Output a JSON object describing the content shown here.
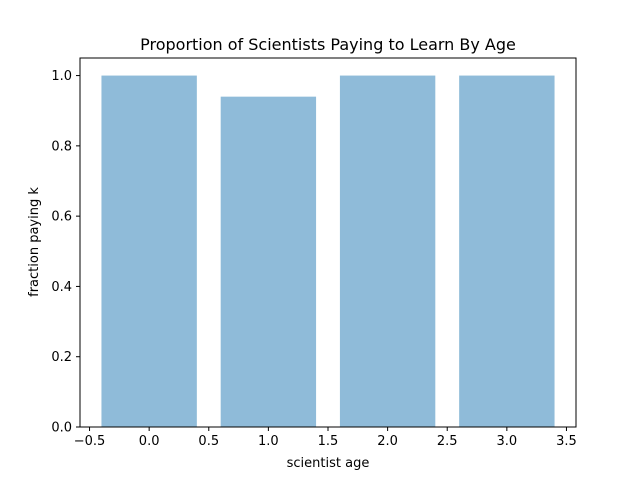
{
  "chart_data": {
    "type": "bar",
    "title": "Proportion of Scientists Paying to Learn By Age",
    "xlabel": "scientist age",
    "ylabel": "fraction paying k",
    "bars": [
      {
        "x": 0,
        "value": 1.0
      },
      {
        "x": 1,
        "value": 0.94
      },
      {
        "x": 2,
        "value": 1.0
      },
      {
        "x": 3,
        "value": 1.0
      }
    ],
    "bar_width": 0.8,
    "xlim": [
      -0.58,
      3.58
    ],
    "ylim": [
      0,
      1.05
    ],
    "xticks": [
      -0.5,
      0.0,
      0.5,
      1.0,
      1.5,
      2.0,
      2.5,
      3.0,
      3.5
    ],
    "xtick_labels": [
      "−0.5",
      "0.0",
      "0.5",
      "1.0",
      "1.5",
      "2.0",
      "2.5",
      "3.0",
      "3.5"
    ],
    "yticks": [
      0.0,
      0.2,
      0.4,
      0.6,
      0.8,
      1.0
    ],
    "ytick_labels": [
      "0.0",
      "0.2",
      "0.4",
      "0.6",
      "0.8",
      "1.0"
    ],
    "bar_color": "#8fbbd9",
    "grid": false,
    "legend": "none"
  }
}
